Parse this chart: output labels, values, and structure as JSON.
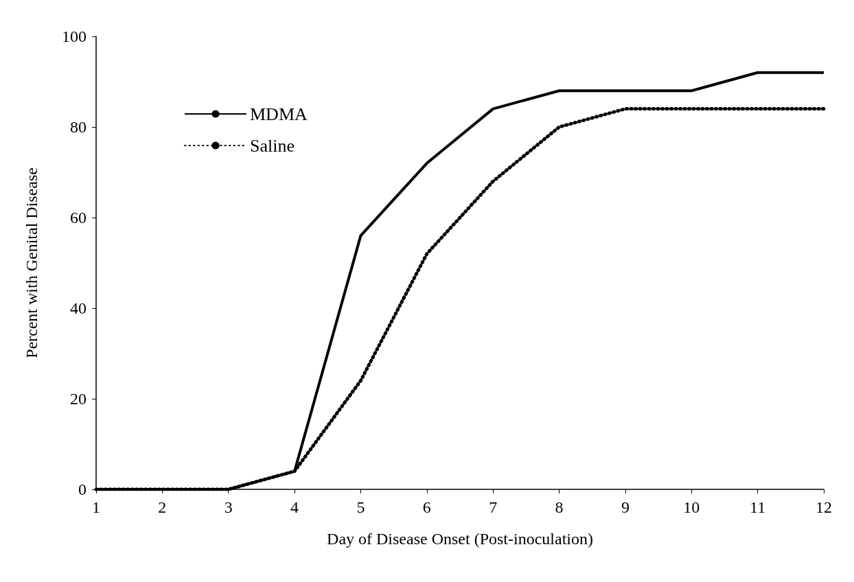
{
  "chart_data": {
    "type": "line",
    "xlabel": "Day of Disease Onset (Post-inoculation)",
    "ylabel": "Percent with Genital Disease",
    "x": [
      1,
      2,
      3,
      4,
      5,
      6,
      7,
      8,
      9,
      10,
      11,
      12
    ],
    "series": [
      {
        "name": "MDMA",
        "color": "#000000",
        "line_style": "solid",
        "values": [
          0,
          0,
          0,
          4,
          56,
          72,
          84,
          88,
          88,
          88,
          92,
          92
        ]
      },
      {
        "name": "Saline",
        "color": "#000000",
        "line_style": "dotted",
        "values": [
          0,
          0,
          0,
          4,
          24,
          52,
          68,
          80,
          84,
          84,
          84,
          84
        ]
      }
    ],
    "xlim": [
      1,
      12
    ],
    "xticks": [
      1,
      2,
      3,
      4,
      5,
      6,
      7,
      8,
      9,
      10,
      11,
      12
    ],
    "ylim": [
      0,
      100
    ],
    "yticks": [
      0,
      20,
      40,
      60,
      80,
      100
    ],
    "grid": false,
    "legend": "top left",
    "marker": "none"
  }
}
